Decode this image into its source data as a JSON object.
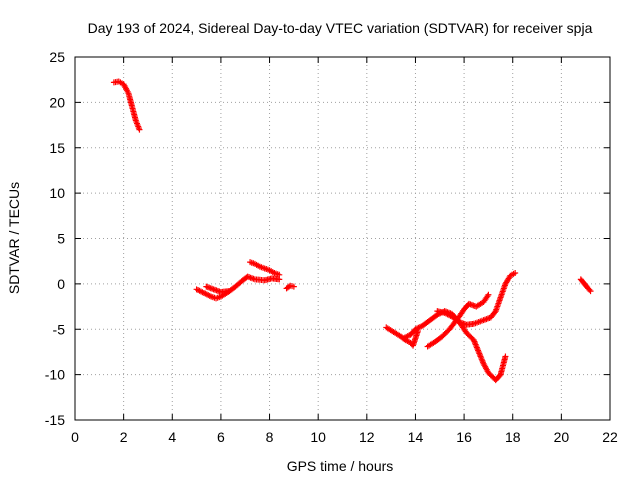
{
  "chart_data": {
    "type": "scatter",
    "title": "Day 193 of 2024, Sidereal Day-to-day VTEC variation (SDTVAR) for receiver spja",
    "xlabel": "GPS time / hours",
    "ylabel": "SDTVAR / TECUs",
    "xlim": [
      0,
      22
    ],
    "ylim": [
      -15,
      25
    ],
    "xticks": [
      0,
      2,
      4,
      6,
      8,
      10,
      12,
      14,
      16,
      18,
      20,
      22
    ],
    "yticks": [
      -15,
      -10,
      -5,
      0,
      5,
      10,
      15,
      20,
      25
    ],
    "grid": true,
    "marker": "plus",
    "series": [
      {
        "name": "SDTVAR",
        "color": "#ff0000",
        "segments": [
          [
            [
              1.6,
              22.2
            ],
            [
              1.8,
              22.3
            ],
            [
              2.0,
              22.0
            ],
            [
              2.2,
              21.0
            ],
            [
              2.35,
              19.5
            ],
            [
              2.5,
              18.0
            ],
            [
              2.65,
              17.0
            ]
          ],
          [
            [
              5.0,
              -0.6
            ],
            [
              5.3,
              -1.0
            ],
            [
              5.6,
              -1.4
            ],
            [
              5.8,
              -1.6
            ],
            [
              6.0,
              -1.4
            ],
            [
              6.3,
              -0.9
            ],
            [
              6.6,
              -0.3
            ],
            [
              6.9,
              0.4
            ],
            [
              7.1,
              0.8
            ],
            [
              7.4,
              0.5
            ],
            [
              7.8,
              0.4
            ],
            [
              8.1,
              0.6
            ],
            [
              8.4,
              0.5
            ]
          ],
          [
            [
              7.2,
              2.4
            ],
            [
              7.4,
              2.2
            ],
            [
              7.6,
              1.9
            ],
            [
              7.8,
              1.7
            ],
            [
              8.0,
              1.5
            ],
            [
              8.2,
              1.2
            ],
            [
              8.4,
              1.0
            ]
          ],
          [
            [
              5.4,
              -0.3
            ],
            [
              5.7,
              -0.6
            ],
            [
              6.0,
              -0.9
            ],
            [
              6.3,
              -0.8
            ]
          ],
          [
            [
              8.7,
              -0.5
            ],
            [
              8.85,
              -0.2
            ],
            [
              9.0,
              -0.3
            ]
          ],
          [
            [
              12.8,
              -4.8
            ],
            [
              13.1,
              -5.3
            ],
            [
              13.4,
              -5.8
            ],
            [
              13.6,
              -6.2
            ],
            [
              13.8,
              -6.5
            ],
            [
              13.9,
              -6.8
            ],
            [
              14.0,
              -6.0
            ],
            [
              14.1,
              -5.2
            ]
          ],
          [
            [
              13.5,
              -6.0
            ],
            [
              13.8,
              -5.6
            ],
            [
              14.0,
              -5.0
            ],
            [
              14.3,
              -4.6
            ],
            [
              14.6,
              -4.0
            ],
            [
              14.9,
              -3.4
            ],
            [
              15.2,
              -3.0
            ],
            [
              15.5,
              -3.3
            ],
            [
              15.8,
              -4.2
            ],
            [
              16.1,
              -5.4
            ],
            [
              16.4,
              -6.2
            ],
            [
              16.6,
              -7.5
            ],
            [
              16.8,
              -8.8
            ],
            [
              17.0,
              -9.8
            ],
            [
              17.3,
              -10.6
            ],
            [
              17.5,
              -10.0
            ],
            [
              17.7,
              -8.0
            ]
          ],
          [
            [
              14.5,
              -6.9
            ],
            [
              14.8,
              -6.4
            ],
            [
              15.1,
              -5.8
            ],
            [
              15.4,
              -5.0
            ],
            [
              15.6,
              -4.3
            ],
            [
              15.8,
              -3.6
            ],
            [
              16.0,
              -2.8
            ],
            [
              16.2,
              -2.2
            ],
            [
              16.5,
              -2.5
            ],
            [
              16.8,
              -2.0
            ],
            [
              17.0,
              -1.2
            ]
          ],
          [
            [
              14.9,
              -3.0
            ],
            [
              15.2,
              -3.2
            ],
            [
              15.5,
              -3.6
            ],
            [
              15.8,
              -4.2
            ],
            [
              16.1,
              -4.5
            ],
            [
              16.4,
              -4.4
            ],
            [
              16.8,
              -4.0
            ],
            [
              17.1,
              -3.7
            ],
            [
              17.3,
              -3.0
            ],
            [
              17.5,
              -1.5
            ],
            [
              17.7,
              0.0
            ],
            [
              17.9,
              0.9
            ],
            [
              18.1,
              1.2
            ]
          ],
          [
            [
              20.8,
              0.5
            ],
            [
              20.95,
              0.0
            ],
            [
              21.1,
              -0.5
            ],
            [
              21.2,
              -0.8
            ]
          ]
        ]
      }
    ]
  }
}
